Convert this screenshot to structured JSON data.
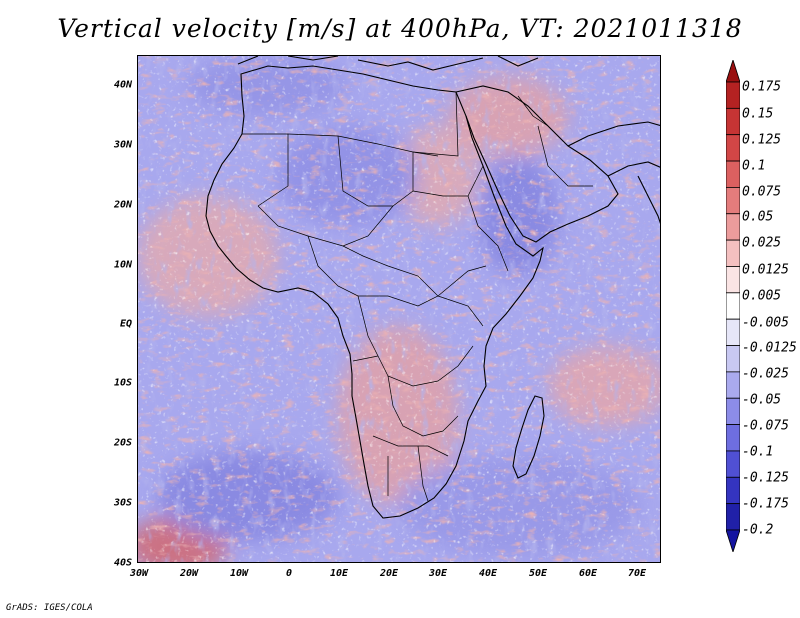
{
  "title": "Vertical velocity [m/s] at 400hPa, VT: 2021011318",
  "footer": "GrADS: IGES/COLA",
  "axes": {
    "lat_labels": [
      "40N",
      "30N",
      "20N",
      "10N",
      "EQ",
      "10S",
      "20S",
      "30S",
      "40S"
    ],
    "lon_labels": [
      "30W",
      "20W",
      "10W",
      "0",
      "10E",
      "20E",
      "30E",
      "40E",
      "50E",
      "60E",
      "70E"
    ]
  },
  "colorbar": {
    "labels": [
      "0.175",
      "0.15",
      "0.125",
      "0.1",
      "0.075",
      "0.05",
      "0.025",
      "0.0125",
      "0.005",
      "-0.005",
      "-0.0125",
      "-0.025",
      "-0.05",
      "-0.075",
      "-0.1",
      "-0.125",
      "-0.175",
      "-0.2"
    ],
    "colors": [
      "#9a1010",
      "#b42222",
      "#c63434",
      "#d24646",
      "#dc6060",
      "#e47c7c",
      "#ec9c9c",
      "#f4c0c0",
      "#fae4e4",
      "#ffffff",
      "#e6e6f8",
      "#c8c8f2",
      "#aaaaee",
      "#8c8ce8",
      "#6e6ee0",
      "#5050d4",
      "#3434c0",
      "#2020a8",
      "#1414a0"
    ]
  },
  "map_colors": {
    "base": "#a4a4ec",
    "warm": "#e89a9a",
    "cold": "#7070d8"
  }
}
